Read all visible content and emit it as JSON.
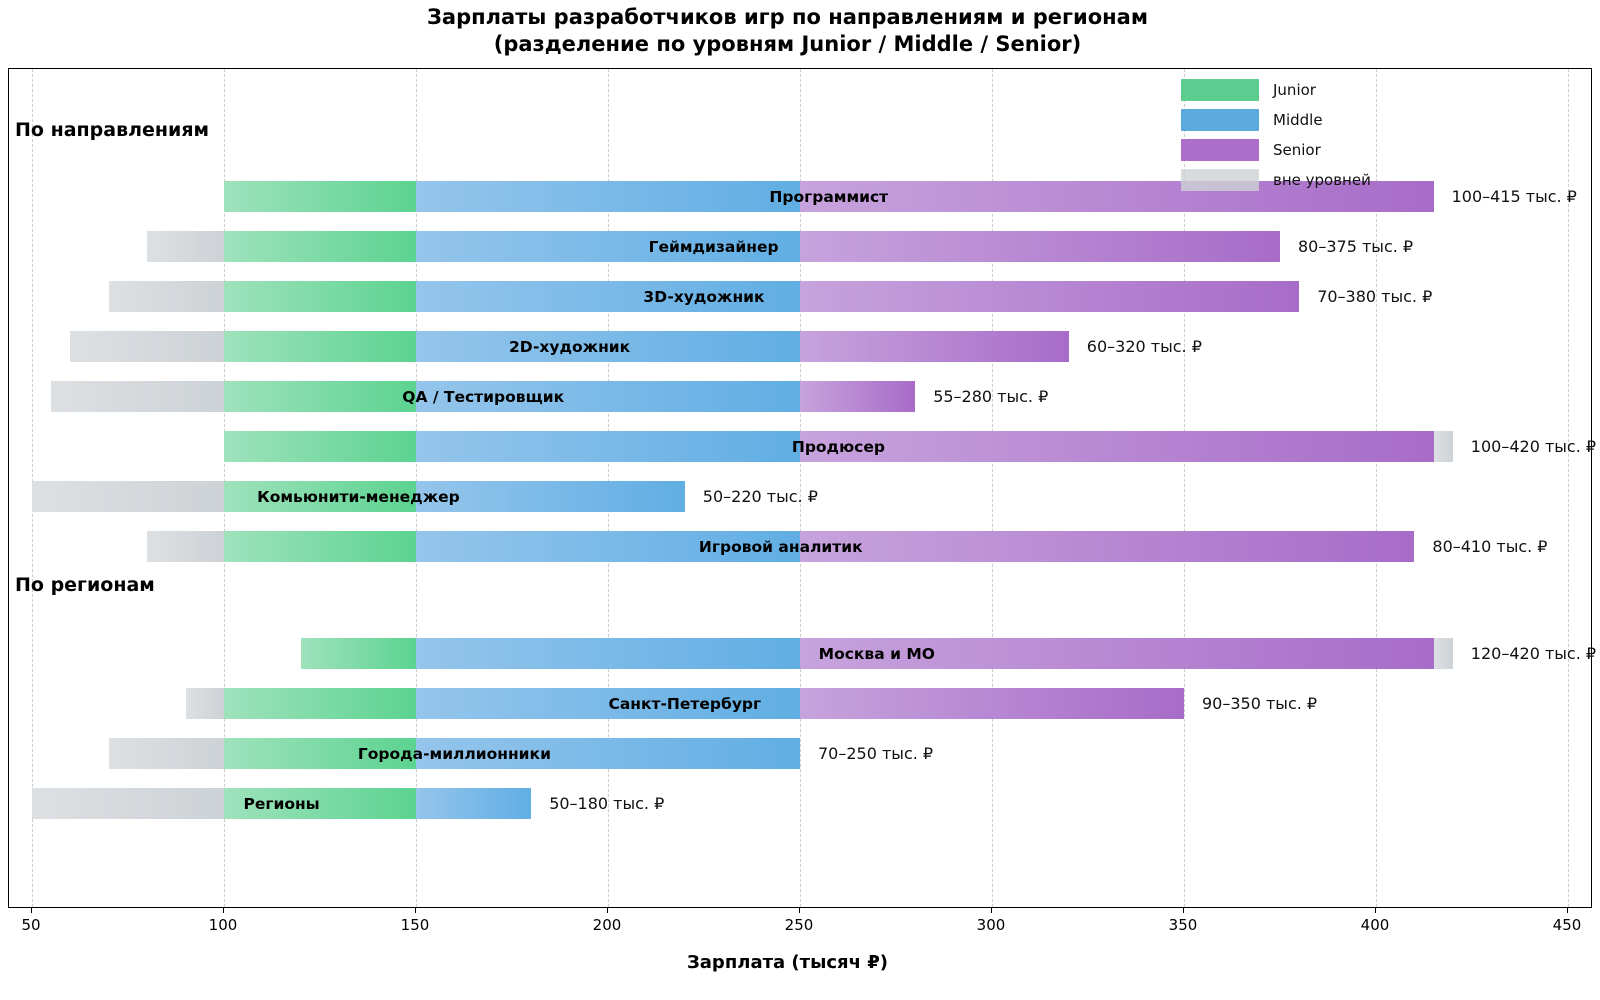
{
  "title": "Зарплаты разработчиков игр по направлениям и регионам",
  "subtitle": "(разделение по уровням Junior / Middle / Senior)",
  "chart_data": {
    "type": "bar",
    "orientation": "horizontal-range-stacked",
    "title": "Зарплаты разработчиков игр по направлениям и регионам (разделение по уровням Junior / Middle / Senior)",
    "xlabel": "Зарплата (тысяч ₽)",
    "x_ticks": [
      50,
      100,
      150,
      200,
      250,
      300,
      350,
      400,
      450
    ],
    "xlim": [
      44,
      456
    ],
    "grid": "vertical-dashed",
    "legend_position": "top-right",
    "level_bands": {
      "junior": [
        100,
        150
      ],
      "middle": [
        150,
        250
      ],
      "senior": [
        250,
        415
      ]
    },
    "legend": [
      {
        "name": "junior",
        "label": "Junior",
        "color": "#5dcd8f"
      },
      {
        "name": "middle",
        "label": "Middle",
        "color": "#5aaade"
      },
      {
        "name": "senior",
        "label": "Senior",
        "color": "#ab6fc9"
      },
      {
        "name": "outside",
        "label": "вне уровней",
        "color": "rgba(205,210,214,0.8)"
      }
    ],
    "colors": {
      "junior_gradient": [
        "#9fe2bc",
        "#5cd390"
      ],
      "middle_gradient": [
        "#95c5eb",
        "#60aee4"
      ],
      "senior_gradient": [
        "#c7a3dd",
        "#a76cc8"
      ],
      "outside_gradient": [
        "#dde0e3",
        "#cdd2d6"
      ]
    },
    "sections": [
      {
        "label": "По направлениям",
        "rows": [
          {
            "label": "Программист",
            "min": 100,
            "max": 415,
            "range_label": "100–415 тыс. ₽"
          },
          {
            "label": "Геймдизайнер",
            "min": 80,
            "max": 375,
            "range_label": "80–375 тыс. ₽"
          },
          {
            "label": "3D-художник",
            "min": 70,
            "max": 380,
            "range_label": "70–380 тыс. ₽"
          },
          {
            "label": "2D-художник",
            "min": 60,
            "max": 320,
            "range_label": "60–320 тыс. ₽"
          },
          {
            "label": "QA / Тестировщик",
            "min": 55,
            "max": 280,
            "range_label": "55–280 тыс. ₽"
          },
          {
            "label": "Продюсер",
            "min": 100,
            "max": 420,
            "range_label": "100–420 тыс. ₽"
          },
          {
            "label": "Комьюнити-менеджер",
            "min": 50,
            "max": 220,
            "range_label": "50–220 тыс. ₽"
          },
          {
            "label": "Игровой аналитик",
            "min": 80,
            "max": 410,
            "range_label": "80–410 тыс. ₽"
          }
        ]
      },
      {
        "label": "По регионам",
        "rows": [
          {
            "label": "Москва и МО",
            "min": 120,
            "max": 420,
            "range_label": "120–420 тыс. ₽"
          },
          {
            "label": "Санкт-Петербург",
            "min": 90,
            "max": 350,
            "range_label": "90–350 тыс. ₽"
          },
          {
            "label": "Города-миллионники",
            "min": 70,
            "max": 250,
            "range_label": "70–250 тыс. ₽"
          },
          {
            "label": "Регионы",
            "min": 50,
            "max": 180,
            "range_label": "50–180 тыс. ₽"
          }
        ]
      }
    ]
  }
}
